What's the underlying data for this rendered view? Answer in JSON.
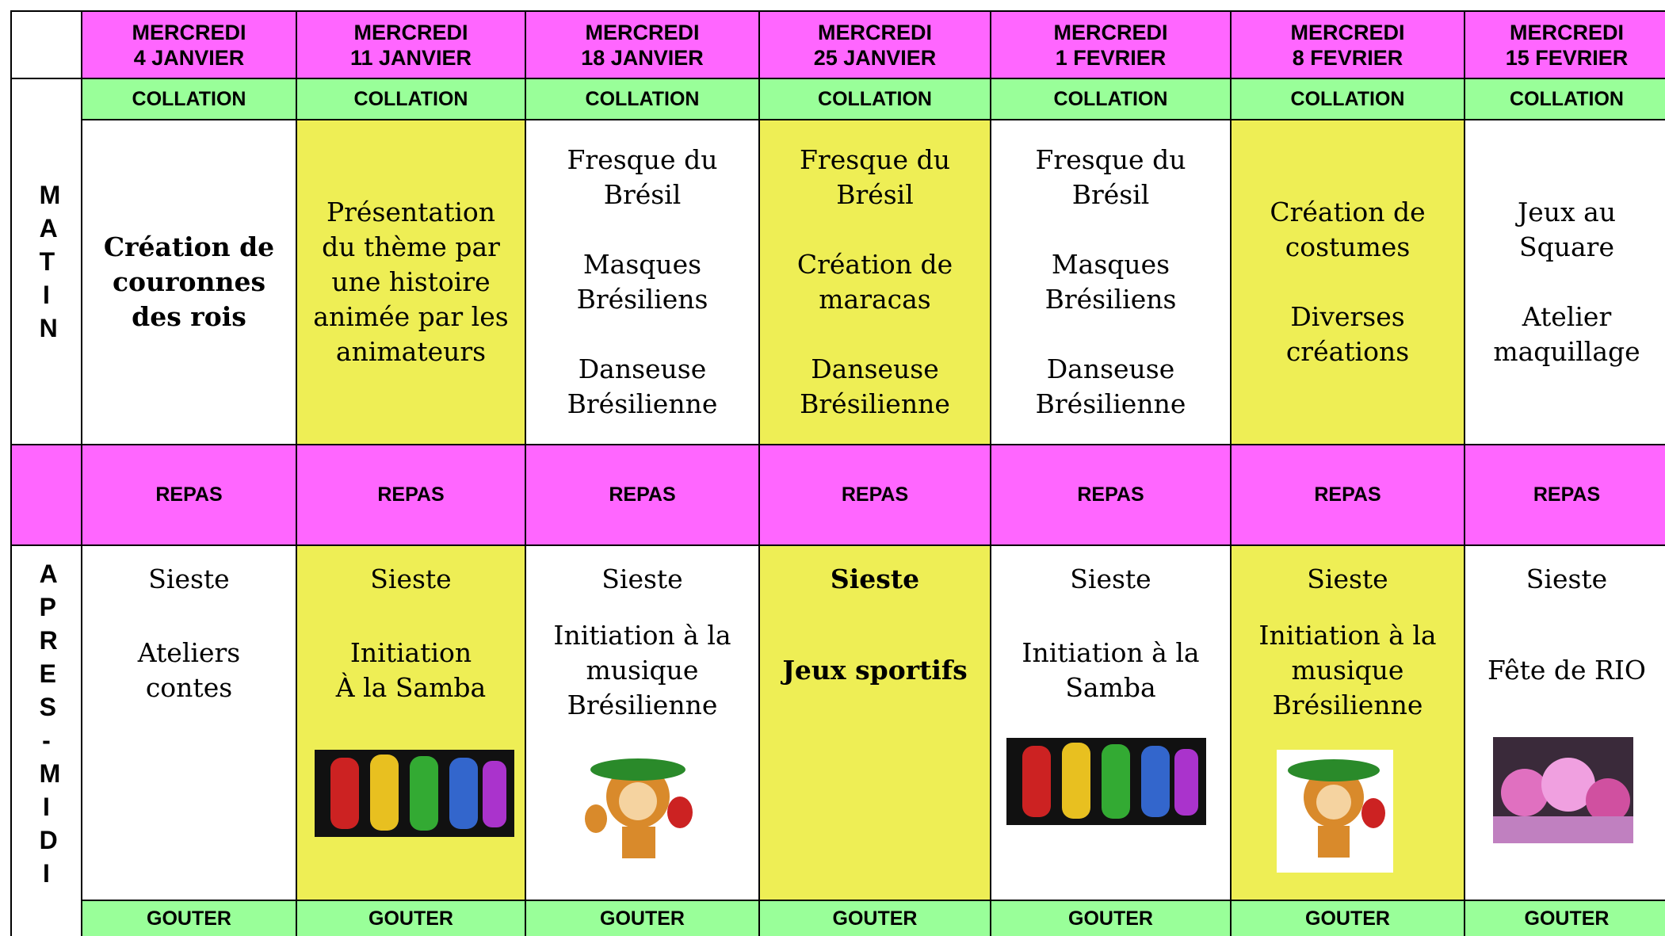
{
  "snack_label": "COLLATION",
  "meal_label": "REPAS",
  "tea_label": "GOUTER",
  "morning_label": "MATIN",
  "afternoon_label": "APRES-MIDI",
  "columns": [
    {
      "day": "MERCREDI",
      "date": "4 JANVIER",
      "highlight": false,
      "morning": [
        [
          "Création de",
          "couronnes",
          "des rois"
        ]
      ],
      "morning_bold": true,
      "nap": "Sieste",
      "afternoon": [
        "Ateliers",
        "contes"
      ],
      "afternoon_bold": false
    },
    {
      "day": "MERCREDI",
      "date": "11 JANVIER",
      "highlight": true,
      "morning": [
        [
          "Présentation",
          "du thème par",
          "une histoire",
          "animée par les",
          "animateurs"
        ]
      ],
      "morning_bold": false,
      "nap": "Sieste",
      "afternoon": [
        "Initiation",
        "À la Samba"
      ],
      "afternoon_bold": false
    },
    {
      "day": "MERCREDI",
      "date": "18 JANVIER",
      "highlight": false,
      "morning": [
        [
          "Fresque du",
          "Brésil"
        ],
        [
          "Masques",
          "Brésiliens"
        ],
        [
          "Danseuse",
          "Brésilienne"
        ]
      ],
      "morning_bold": false,
      "nap": "Sieste",
      "afternoon": [
        "Initiation à la",
        "musique",
        "Brésilienne"
      ],
      "afternoon_bold": false
    },
    {
      "day": "MERCREDI",
      "date": "25 JANVIER",
      "highlight": true,
      "morning": [
        [
          "Fresque du",
          "Brésil"
        ],
        [
          "Création de",
          "maracas"
        ],
        [
          "Danseuse",
          "Brésilienne"
        ]
      ],
      "morning_bold": false,
      "nap": "Sieste",
      "afternoon": [
        "Jeux sportifs"
      ],
      "afternoon_bold": true
    },
    {
      "day": "MERCREDI",
      "date": "1 FEVRIER",
      "highlight": false,
      "morning": [
        [
          "Fresque du",
          "Brésil"
        ],
        [
          "Masques",
          "Brésiliens"
        ],
        [
          "Danseuse",
          "Brésilienne"
        ]
      ],
      "morning_bold": false,
      "nap": "Sieste",
      "afternoon": [
        "Initiation à la",
        "Samba"
      ],
      "afternoon_bold": false
    },
    {
      "day": "MERCREDI",
      "date": "8 FEVRIER",
      "highlight": true,
      "morning": [
        [
          "Création de",
          "costumes"
        ],
        [
          "Diverses",
          "créations"
        ]
      ],
      "morning_bold": false,
      "nap": "Sieste",
      "afternoon": [
        "Initiation à la",
        "musique",
        "Brésilienne"
      ],
      "afternoon_bold": false
    },
    {
      "day": "MERCREDI",
      "date": "15 FEVRIER",
      "highlight": false,
      "morning": [
        [
          "Jeux au",
          "Square"
        ],
        [
          "Atelier",
          "maquillage"
        ]
      ],
      "morning_bold": false,
      "nap": "Sieste",
      "afternoon": [
        "Fête de RIO"
      ],
      "afternoon_bold": false
    }
  ]
}
